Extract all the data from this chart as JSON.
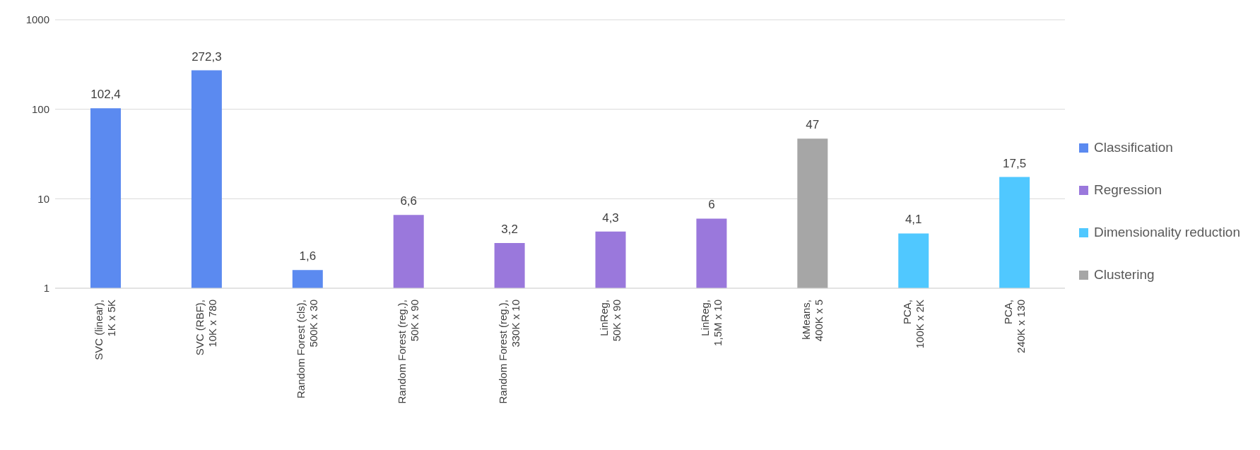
{
  "chart_data": {
    "type": "bar",
    "categories": [
      "SVC (linear),\n1K x 5K",
      "SVC (RBF),\n10K x 780",
      "Random Forest (cls),\n500K x 30",
      "Random Forest (reg.),\n50K x 90",
      "Random Forest (reg.),\n330K x 10",
      "LinReg,\n50K x 90",
      "LinReg,\n1,5M x 10",
      "kMeans,\n400K x 5",
      "PCA,\n100K x 2K",
      "PCA,\n240K x 130"
    ],
    "series": [
      {
        "name": "Classification",
        "color": "#5b8af0",
        "values": [
          102.4,
          272.3,
          1.6,
          null,
          null,
          null,
          null,
          null,
          null,
          null
        ],
        "value_labels": [
          "102,4",
          "272,3",
          "1,6",
          null,
          null,
          null,
          null,
          null,
          null,
          null
        ]
      },
      {
        "name": "Regression",
        "color": "#9a78dc",
        "values": [
          null,
          null,
          null,
          6.6,
          3.2,
          4.3,
          6,
          null,
          null,
          null
        ],
        "value_labels": [
          null,
          null,
          null,
          "6,6",
          "3,2",
          "4,3",
          "6",
          null,
          null,
          null
        ]
      },
      {
        "name": "Dimensionality reduction",
        "color": "#50c8ff",
        "values": [
          null,
          null,
          null,
          null,
          null,
          null,
          null,
          null,
          4.1,
          17.5
        ],
        "value_labels": [
          null,
          null,
          null,
          null,
          null,
          null,
          null,
          null,
          "4,1",
          "17,5"
        ]
      },
      {
        "name": "Clustering",
        "color": "#a6a6a6",
        "values": [
          null,
          null,
          null,
          null,
          null,
          null,
          null,
          47,
          null,
          null
        ],
        "value_labels": [
          null,
          null,
          null,
          null,
          null,
          null,
          null,
          "47",
          null,
          null
        ]
      }
    ],
    "stacked": true,
    "log": true,
    "ylim": [
      1,
      1000
    ],
    "yticks": [
      1,
      10,
      100,
      1000
    ],
    "grid": "y",
    "legend": "right"
  }
}
